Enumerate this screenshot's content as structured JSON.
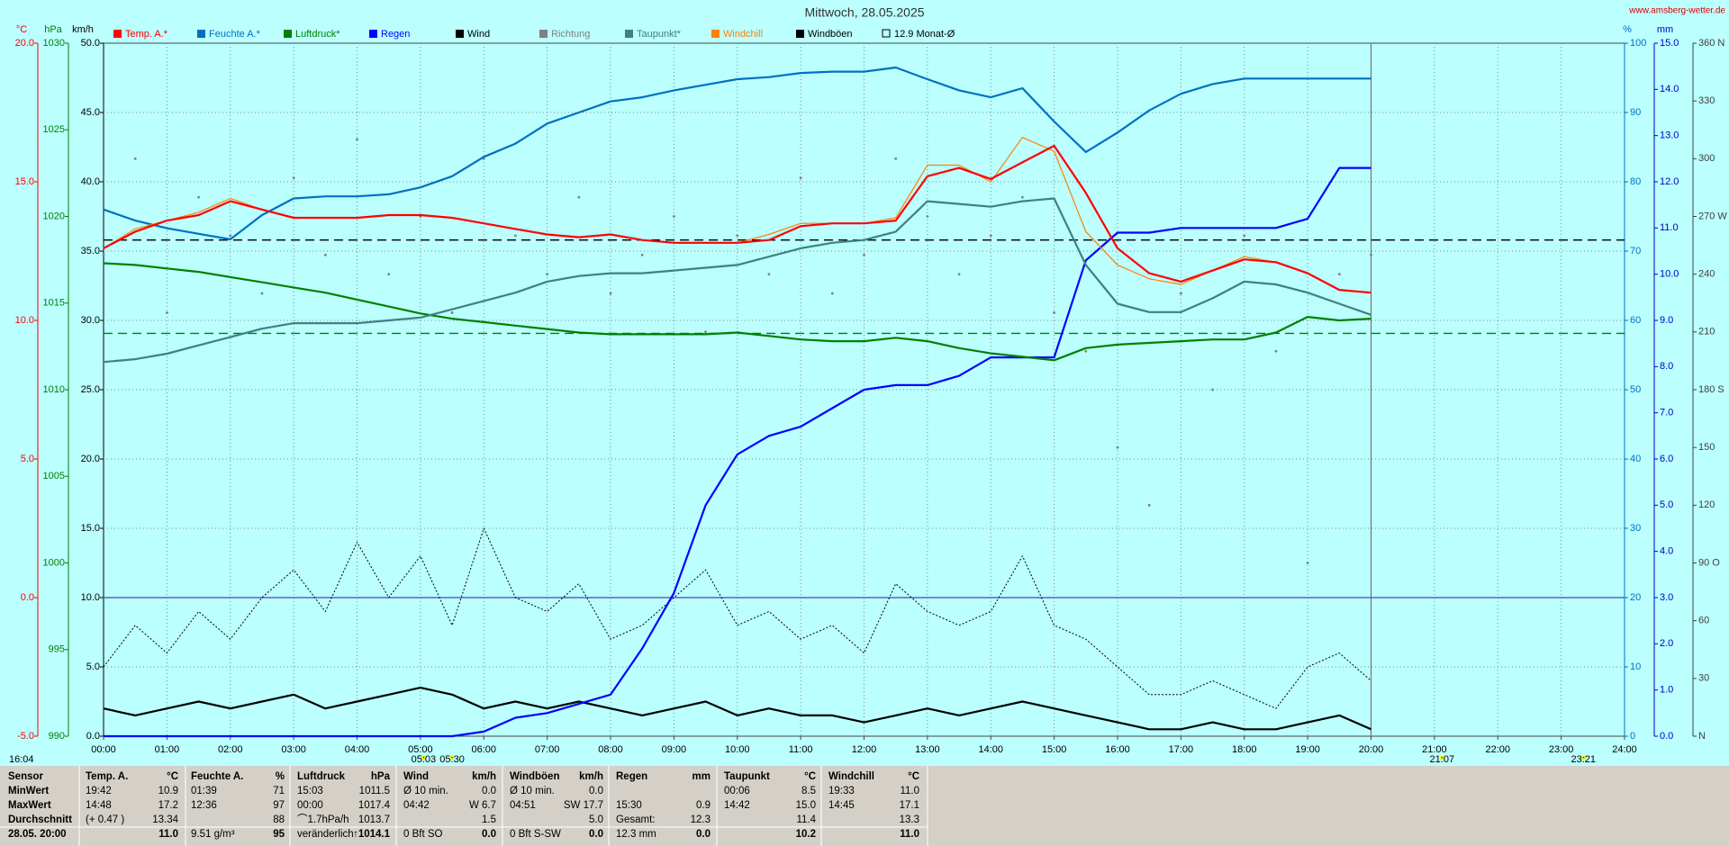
{
  "chart_data": {
    "type": "line",
    "title": "Mittwoch, 28.05.2025",
    "source": "www.amsberg-wetter.de",
    "timestamp": "16:04",
    "x": [
      0,
      0.5,
      1,
      1.5,
      2,
      2.5,
      3,
      3.5,
      4,
      4.5,
      5,
      5.5,
      6,
      6.5,
      7,
      7.5,
      8,
      8.5,
      9,
      9.5,
      10,
      10.5,
      11,
      11.5,
      12,
      12.5,
      13,
      13.5,
      14,
      14.5,
      15,
      15.5,
      16,
      16.5,
      17,
      17.5,
      18,
      18.5,
      19,
      19.5,
      20
    ],
    "xlim": [
      0,
      24
    ],
    "xticks": [
      {
        "value": 0,
        "label": "00:00"
      },
      {
        "value": 1,
        "label": "01:00"
      },
      {
        "value": 2,
        "label": "02:00"
      },
      {
        "value": 3,
        "label": "03:00"
      },
      {
        "value": 4,
        "label": "04:00"
      },
      {
        "value": 5,
        "label": "05:00"
      },
      {
        "value": 6,
        "label": "06:00"
      },
      {
        "value": 7,
        "label": "07:00"
      },
      {
        "value": 8,
        "label": "08:00"
      },
      {
        "value": 9,
        "label": "09:00"
      },
      {
        "value": 10,
        "label": "10:00"
      },
      {
        "value": 11,
        "label": "11:00"
      },
      {
        "value": 12,
        "label": "12:00"
      },
      {
        "value": 13,
        "label": "13:00"
      },
      {
        "value": 14,
        "label": "14:00"
      },
      {
        "value": 15,
        "label": "15:00"
      },
      {
        "value": 16,
        "label": "16:00"
      },
      {
        "value": 17,
        "label": "17:00"
      },
      {
        "value": 18,
        "label": "18:00"
      },
      {
        "value": 19,
        "label": "19:00"
      },
      {
        "value": 20,
        "label": "20:00"
      },
      {
        "value": 21,
        "label": "21:00"
      },
      {
        "value": 22,
        "label": "22:00"
      },
      {
        "value": 23,
        "label": "23:00"
      },
      {
        "value": 24,
        "label": "24:00"
      }
    ],
    "grid": true,
    "axes": {
      "temp": {
        "label": "°C",
        "side": "left",
        "color": "#ff0000",
        "ylim": [
          -5,
          20
        ],
        "yticks": [
          {
            "value": -5,
            "label": "-5.0"
          },
          {
            "value": 0,
            "label": "0.0"
          },
          {
            "value": 5,
            "label": "5.0"
          },
          {
            "value": 10,
            "label": "10.0"
          },
          {
            "value": 15,
            "label": "15.0"
          },
          {
            "value": 20,
            "label": "20.0"
          }
        ]
      },
      "hpa": {
        "label": "hPa",
        "side": "left",
        "color": "#008000",
        "ylim": [
          990,
          1030
        ],
        "yticks": [
          990,
          995,
          1000,
          1005,
          1010,
          1015,
          1020,
          1025,
          1030
        ]
      },
      "kmh": {
        "label": "km/h",
        "side": "left",
        "color": "#000000",
        "ylim": [
          0,
          50
        ],
        "yticks": [
          {
            "value": 0,
            "label": "0.0"
          },
          {
            "value": 5,
            "label": "5.0"
          },
          {
            "value": 10,
            "label": "10.0"
          },
          {
            "value": 15,
            "label": "15.0"
          },
          {
            "value": 20,
            "label": "20.0"
          },
          {
            "value": 25,
            "label": "25.0"
          },
          {
            "value": 30,
            "label": "30.0"
          },
          {
            "value": 35,
            "label": "35.0"
          },
          {
            "value": 40,
            "label": "40.0"
          },
          {
            "value": 45,
            "label": "45.0"
          },
          {
            "value": 50,
            "label": "50.0"
          }
        ]
      },
      "pct": {
        "label": "%",
        "side": "right",
        "color": "#0070c0",
        "ylim": [
          0,
          100
        ],
        "yticks": [
          0,
          10,
          20,
          30,
          40,
          50,
          60,
          70,
          80,
          90,
          100
        ]
      },
      "mm": {
        "label": "mm",
        "side": "right",
        "color": "#0000c0",
        "ylim": [
          0,
          15
        ],
        "yticks": [
          {
            "value": 0,
            "label": "0.0"
          },
          {
            "value": 1,
            "label": "1.0"
          },
          {
            "value": 2,
            "label": "2.0"
          },
          {
            "value": 3,
            "label": "3.0"
          },
          {
            "value": 4,
            "label": "4.0"
          },
          {
            "value": 5,
            "label": "5.0"
          },
          {
            "value": 6,
            "label": "6.0"
          },
          {
            "value": 7,
            "label": "7.0"
          },
          {
            "value": 8,
            "label": "8.0"
          },
          {
            "value": 9,
            "label": "9.0"
          },
          {
            "value": 10,
            "label": "10.0"
          },
          {
            "value": 11,
            "label": "11.0"
          },
          {
            "value": 12,
            "label": "12.0"
          },
          {
            "value": 13,
            "label": "13.0"
          },
          {
            "value": 14,
            "label": "14.0"
          },
          {
            "value": 15,
            "label": "15.0"
          }
        ]
      },
      "dir": {
        "side": "right",
        "color": "#404040",
        "ylim": [
          0,
          360
        ],
        "yticks": [
          {
            "value": 0,
            "label": "N"
          },
          30,
          60,
          {
            "value": 90,
            "label": "90 O"
          },
          120,
          150,
          {
            "value": 180,
            "label": "180 S"
          },
          210,
          240,
          {
            "value": 270,
            "label": "270 W"
          },
          300,
          330,
          {
            "value": 360,
            "label": "360 N"
          }
        ]
      }
    },
    "series": [
      {
        "name": "Temp. A.*",
        "color": "#ff0000",
        "axis": "temp",
        "style": "line",
        "values": [
          12.6,
          13.2,
          13.6,
          13.8,
          14.3,
          14.0,
          13.7,
          13.7,
          13.7,
          13.8,
          13.8,
          13.7,
          13.5,
          13.3,
          13.1,
          13.0,
          13.1,
          12.9,
          12.8,
          12.8,
          12.8,
          12.9,
          13.4,
          13.5,
          13.5,
          13.6,
          15.2,
          15.5,
          15.1,
          15.7,
          16.3,
          14.6,
          12.6,
          11.7,
          11.4,
          11.8,
          12.2,
          12.1,
          11.7,
          11.1,
          11.0
        ]
      },
      {
        "name": "Feuchte A.*",
        "color": "#0070c0",
        "axis": "pct",
        "style": "line",
        "values": [
          76.0,
          74.4,
          73.3,
          72.5,
          71.7,
          75.2,
          77.6,
          77.9,
          77.9,
          78.2,
          79.2,
          80.8,
          83.6,
          85.5,
          88.4,
          90.0,
          91.6,
          92.2,
          93.2,
          94.0,
          94.8,
          95.1,
          95.7,
          95.9,
          95.9,
          96.5,
          94.8,
          93.2,
          92.2,
          93.5,
          88.7,
          84.3,
          87.1,
          90.3,
          92.7,
          94.1,
          94.9,
          94.9,
          94.9,
          94.9,
          94.9
        ]
      },
      {
        "name": "Luftdruck*",
        "color": "#008000",
        "axis": "hpa",
        "style": "line",
        "values": [
          1017.3,
          1017.2,
          1017.0,
          1016.8,
          1016.5,
          1016.2,
          1015.9,
          1015.6,
          1015.2,
          1014.8,
          1014.4,
          1014.1,
          1013.9,
          1013.7,
          1013.5,
          1013.3,
          1013.2,
          1013.2,
          1013.2,
          1013.2,
          1013.3,
          1013.1,
          1012.9,
          1012.8,
          1012.8,
          1013.0,
          1012.8,
          1012.4,
          1012.1,
          1011.9,
          1011.7,
          1012.4,
          1012.6,
          1012.7,
          1012.8,
          1012.9,
          1012.9,
          1013.3,
          1014.2,
          1014.0,
          1014.1
        ]
      },
      {
        "name": "Regen",
        "color": "#0000ff",
        "axis": "mm",
        "style": "line",
        "values": [
          0,
          0,
          0,
          0,
          0,
          0,
          0,
          0,
          0,
          0,
          0,
          0,
          0.1,
          0.4,
          0.5,
          0.7,
          0.9,
          1.9,
          3.1,
          5.0,
          6.1,
          6.5,
          6.7,
          7.1,
          7.5,
          7.6,
          7.6,
          7.8,
          8.2,
          8.2,
          8.2,
          10.3,
          10.9,
          10.9,
          11.0,
          11.0,
          11.0,
          11.0,
          11.2,
          12.3,
          12.3
        ]
      },
      {
        "name": "Wind",
        "color": "#000000",
        "axis": "kmh",
        "style": "line",
        "values": [
          2,
          1.5,
          2,
          2.5,
          2,
          2.5,
          3,
          2,
          2.5,
          3,
          3.5,
          3,
          2,
          2.5,
          2,
          2.5,
          2,
          1.5,
          2,
          2.5,
          1.5,
          2,
          1.5,
          1.5,
          1,
          1.5,
          2,
          1.5,
          2,
          2.5,
          2,
          1.5,
          1,
          0.5,
          0.5,
          1,
          0.5,
          0.5,
          1,
          1.5,
          0.5
        ]
      },
      {
        "name": "Richtung",
        "color": "#808080",
        "axis": "dir",
        "style": "dots",
        "values": [
          250,
          300,
          220,
          280,
          260,
          230,
          290,
          250,
          310,
          240,
          270,
          220,
          300,
          260,
          240,
          280,
          230,
          250,
          270,
          210,
          260,
          240,
          290,
          230,
          250,
          300,
          270,
          240,
          260,
          280,
          220,
          200,
          150,
          120,
          230,
          180,
          260,
          200,
          90,
          240,
          250
        ]
      },
      {
        "name": "Taupunkt*",
        "color": "#408080",
        "axis": "temp",
        "style": "line",
        "values": [
          8.5,
          8.6,
          8.8,
          9.1,
          9.4,
          9.7,
          9.9,
          9.9,
          9.9,
          10.0,
          10.1,
          10.4,
          10.7,
          11.0,
          11.4,
          11.6,
          11.7,
          11.7,
          11.8,
          11.9,
          12.0,
          12.3,
          12.6,
          12.8,
          12.9,
          13.2,
          14.3,
          14.2,
          14.1,
          14.3,
          14.4,
          12.0,
          10.6,
          10.3,
          10.3,
          10.8,
          11.4,
          11.3,
          11.0,
          10.6,
          10.2
        ]
      },
      {
        "name": "Windchill",
        "color": "#ff8000",
        "axis": "temp",
        "style": "thin",
        "values": [
          12.6,
          13.3,
          13.6,
          13.9,
          14.4,
          14.0,
          13.7,
          13.7,
          13.7,
          13.8,
          13.8,
          13.7,
          13.5,
          13.3,
          13.1,
          13.0,
          13.1,
          12.9,
          12.8,
          12.8,
          12.8,
          13.1,
          13.5,
          13.5,
          13.5,
          13.7,
          15.6,
          15.6,
          15.0,
          16.6,
          16.1,
          13.2,
          12.0,
          11.5,
          11.3,
          11.8,
          12.3,
          12.1,
          11.7,
          11.1,
          11.0
        ]
      },
      {
        "name": "Windböen",
        "color": "#000000",
        "axis": "kmh",
        "style": "dotted",
        "values": [
          5,
          8,
          6,
          9,
          7,
          10,
          12,
          9,
          14,
          10,
          13,
          8,
          15,
          10,
          9,
          11,
          7,
          8,
          10,
          12,
          8,
          9,
          7,
          8,
          6,
          11,
          9,
          8,
          9,
          13,
          8,
          7,
          5,
          3,
          3,
          4,
          3,
          2,
          5,
          6,
          4
        ]
      }
    ],
    "reference_lines": [
      {
        "name": "12.9 Monat-Ø",
        "color": "#000000",
        "axis": "temp",
        "value": 12.9
      },
      {
        "color": "#008000",
        "axis": "hpa",
        "value": 1013.25
      },
      {
        "color": "#6060c0",
        "axis": "temp",
        "value": 0
      }
    ],
    "current_x": 20,
    "annotations": [
      {
        "x": 5.05,
        "label": "05:03"
      },
      {
        "x": 5.5,
        "label": "05:30"
      },
      {
        "x": 21.12,
        "label": "21:07"
      },
      {
        "x": 23.35,
        "label": "23:21"
      }
    ]
  },
  "table": {
    "rows": [
      [
        "Sensor",
        "Temp. A.",
        "°C",
        "Feuchte A.",
        "%",
        "Luftdruck",
        "hPa",
        "Wind",
        "km/h",
        "Windböen",
        "km/h",
        "Regen",
        "mm",
        "Taupunkt",
        "°C",
        "Windchill",
        "°C"
      ],
      [
        "MinWert",
        "19:42",
        "10.9",
        "01:39",
        "71",
        "15:03",
        "1011.5",
        "Ø 10 min.",
        "0.0",
        "Ø 10 min.",
        "0.0",
        null,
        null,
        "00:06",
        "8.5",
        "19:33",
        "11.0"
      ],
      [
        "MaxWert",
        "14:48",
        "17.2",
        "12:36",
        "97",
        "00:00",
        "1017.4",
        "04:42",
        "W 6.7",
        "04:51",
        "SW 17.7",
        "15:30",
        "0.9",
        "14:42",
        "15.0",
        "14:45",
        "17.1"
      ],
      [
        "Durchschnitt",
        "(+ 0.47 )",
        "13.34",
        null,
        "88",
        "⌒1.7hPa/h",
        "1013.7",
        null,
        "1.5",
        null,
        "5.0",
        "Gesamt:",
        "12.3",
        null,
        "11.4",
        null,
        "13.3"
      ],
      [
        "28.05. 20:00",
        null,
        "11.0",
        "9.51 g/m³",
        "95",
        "veränderlich",
        "↑1014.1",
        "0 Bft SO",
        "0.0",
        "0 Bft S-SW",
        "0.0",
        "12.3 mm",
        "0.0",
        null,
        "10.2",
        null,
        "11.0"
      ]
    ]
  }
}
